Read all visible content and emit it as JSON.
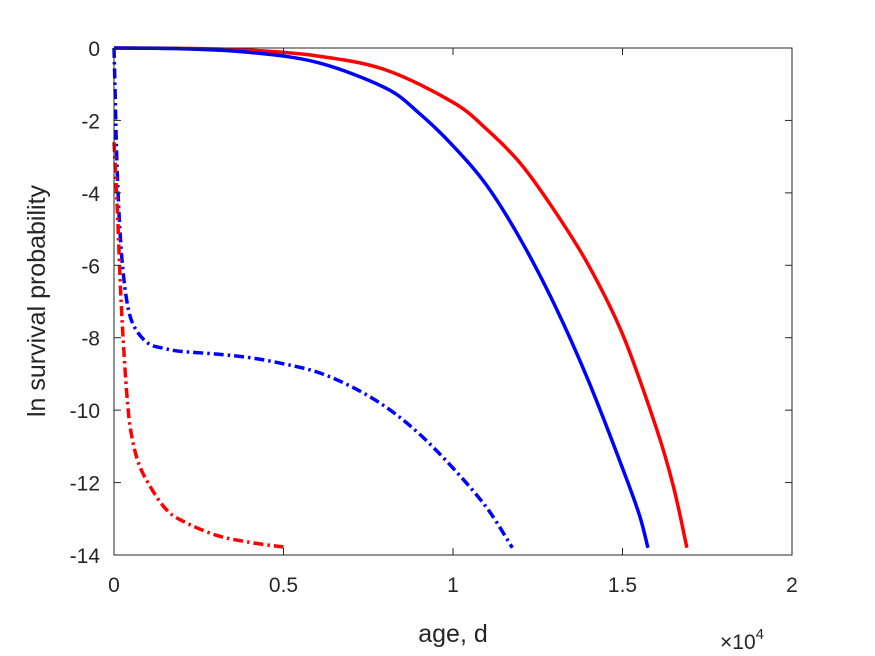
{
  "chart_data": {
    "type": "line",
    "xlabel": "age, d",
    "ylabel": "ln survival probability",
    "x_exponent_label": "×10",
    "x_exponent_power": "4",
    "xlim": [
      0,
      20000
    ],
    "ylim": [
      -14,
      0
    ],
    "x_ticks": [
      0,
      5000,
      10000,
      15000,
      20000
    ],
    "x_tick_labels": [
      "0",
      "0.5",
      "1",
      "1.5",
      "2"
    ],
    "y_ticks": [
      0,
      -2,
      -4,
      -6,
      -8,
      -10,
      -12,
      -14
    ],
    "y_tick_labels": [
      "0",
      "-2",
      "-4",
      "-6",
      "-8",
      "-10",
      "-12",
      "-14"
    ],
    "grid": false,
    "series": [
      {
        "color": "#ff0000",
        "style": "solid",
        "x": [
          0,
          2000,
          4000,
          6000,
          8000,
          10000,
          11000,
          12000,
          13000,
          14000,
          15000,
          16000,
          16500,
          16900
        ],
        "y": [
          0,
          -0.01,
          -0.06,
          -0.22,
          -0.6,
          -1.5,
          -2.25,
          -3.2,
          -4.5,
          -6.0,
          -7.9,
          -10.5,
          -12.1,
          -13.8
        ]
      },
      {
        "color": "#0000ff",
        "style": "solid",
        "x": [
          0,
          2000,
          4000,
          6000,
          8000,
          9000,
          10000,
          11000,
          12000,
          13000,
          14000,
          15000,
          15500,
          15750
        ],
        "y": [
          0,
          -0.02,
          -0.12,
          -0.4,
          -1.1,
          -1.8,
          -2.7,
          -3.8,
          -5.3,
          -7.1,
          -9.2,
          -11.6,
          -12.9,
          -13.8
        ]
      },
      {
        "color": "#0000ff",
        "style": "dashdot",
        "x": [
          0,
          40,
          80,
          150,
          250,
          400,
          600,
          1000,
          1500,
          2000,
          3000,
          4000,
          5000,
          6000,
          7000,
          8000,
          9000,
          10000,
          11000,
          11750
        ],
        "y": [
          0,
          -1.5,
          -3.0,
          -4.6,
          -6.0,
          -7.1,
          -7.7,
          -8.15,
          -8.3,
          -8.38,
          -8.45,
          -8.55,
          -8.72,
          -8.95,
          -9.35,
          -9.9,
          -10.65,
          -11.6,
          -12.7,
          -13.8
        ]
      },
      {
        "color": "#ff0000",
        "style": "dashdot",
        "x": [
          0,
          100,
          200,
          300,
          400,
          500,
          700,
          1000,
          1500,
          2000,
          3000,
          4000,
          5000
        ],
        "y": [
          -2.6,
          -4.5,
          -6.8,
          -8.5,
          -9.8,
          -10.6,
          -11.4,
          -12.0,
          -12.7,
          -13.05,
          -13.45,
          -13.65,
          -13.78
        ]
      }
    ]
  }
}
